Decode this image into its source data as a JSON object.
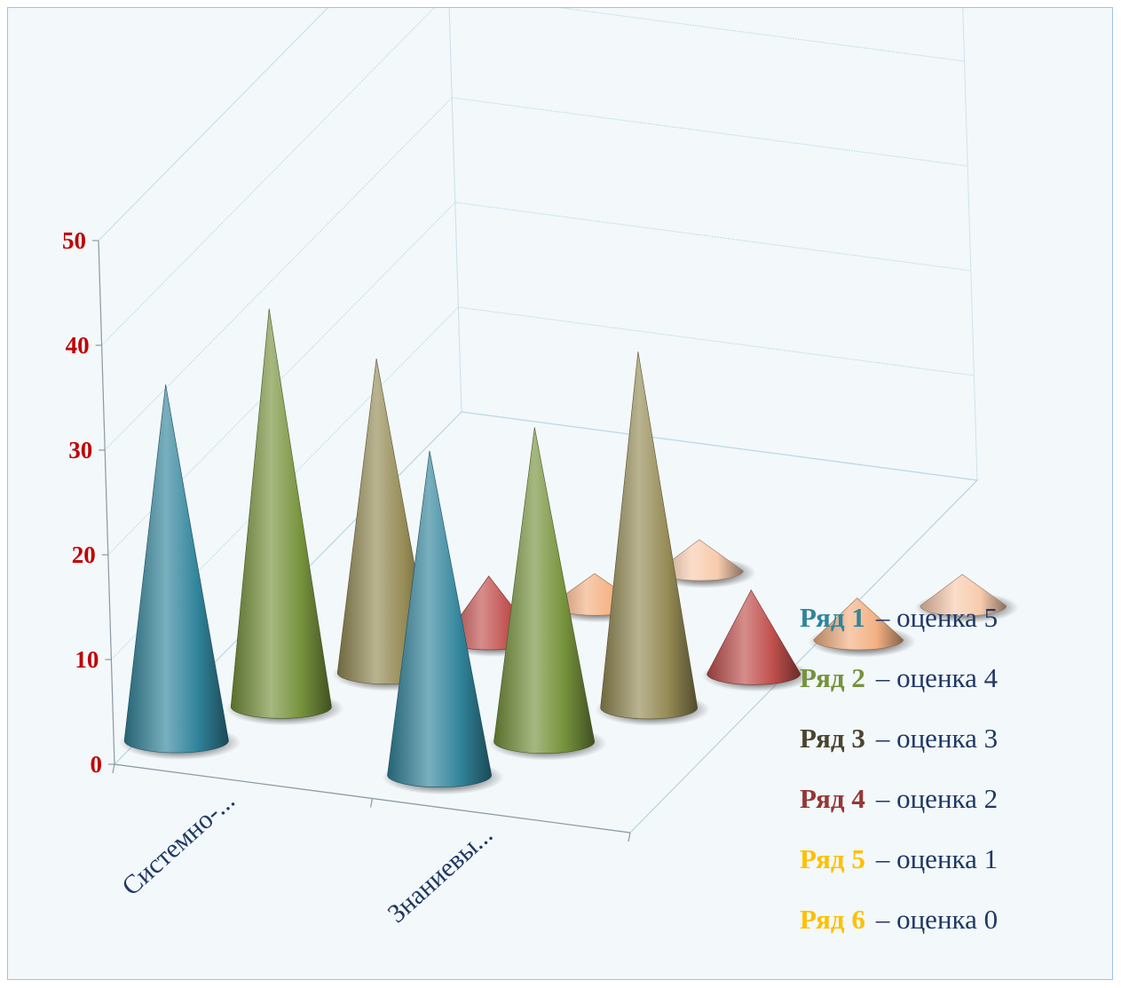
{
  "chart_data": {
    "type": "bar",
    "style": "3d-cone",
    "title": "",
    "xlabel": "",
    "ylabel": "",
    "ylim": [
      0,
      50
    ],
    "yticks": [
      "0",
      "10",
      "20",
      "30",
      "40",
      "50"
    ],
    "categories": [
      "Системно-...",
      "Знаниевы..."
    ],
    "gridlines": true,
    "legend_position": "right",
    "tick_color": "#c00000",
    "category_label_color": "#1f3864",
    "series": [
      {
        "name": "Ряд 1",
        "suffix": "– оценка 5",
        "color": "#31849b",
        "values": [
          34,
          31
        ]
      },
      {
        "name": "Ряд 2",
        "suffix": "– оценка 4",
        "color": "#76923c",
        "values": [
          38,
          30
        ]
      },
      {
        "name": "Ряд 3",
        "suffix": "– оценка 3",
        "color": "#948a54",
        "values": [
          30,
          34
        ]
      },
      {
        "name": "Ряд 4",
        "suffix": "– оценка 2",
        "color": "#c0504d",
        "values": [
          6,
          8
        ]
      },
      {
        "name": "Ряд 5",
        "suffix": "– оценка 1",
        "color": "#f4b183",
        "values": [
          3,
          4
        ]
      },
      {
        "name": "Ряд 6",
        "suffix": "– оценка 0",
        "color": "#f8cbad",
        "values": [
          3,
          3
        ]
      }
    ],
    "legend_name_colors": [
      "#31849b",
      "#76923c",
      "#4a4530",
      "#953735",
      "#ffc000",
      "#ffc000"
    ]
  }
}
